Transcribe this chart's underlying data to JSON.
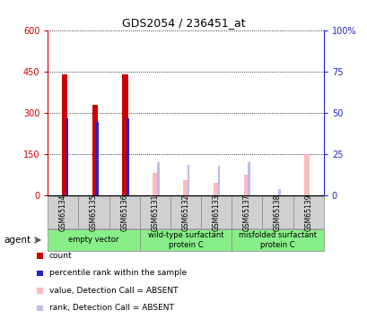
{
  "title": "GDS2054 / 236451_at",
  "samples": [
    "GSM65134",
    "GSM65135",
    "GSM65136",
    "GSM65131",
    "GSM65132",
    "GSM65133",
    "GSM65137",
    "GSM65138",
    "GSM65139"
  ],
  "count_values": [
    440,
    328,
    440,
    0,
    0,
    0,
    0,
    0,
    0
  ],
  "rank_values": [
    280,
    265,
    278,
    0,
    0,
    0,
    0,
    0,
    0
  ],
  "absent_value_values": [
    0,
    0,
    0,
    80,
    55,
    45,
    75,
    0,
    150
  ],
  "absent_rank_values": [
    0,
    0,
    0,
    120,
    110,
    105,
    120,
    22,
    0
  ],
  "count_color": "#cc0000",
  "rank_color": "#2222cc",
  "absent_value_color": "#ffbbbb",
  "absent_rank_color": "#bbbbee",
  "ylim_left": [
    0,
    600
  ],
  "ylim_right": [
    0,
    100
  ],
  "yticks_left": [
    0,
    150,
    300,
    450,
    600
  ],
  "yticks_right": [
    0,
    25,
    50,
    75,
    100
  ],
  "ytick_labels_left": [
    "0",
    "150",
    "300",
    "450",
    "600"
  ],
  "ytick_labels_right": [
    "0",
    "25",
    "50",
    "75",
    "100%"
  ],
  "groups": [
    {
      "label": "empty vector",
      "start": 0,
      "end": 3,
      "color": "#88ee88"
    },
    {
      "label": "wild-type surfactant\nprotein C",
      "start": 3,
      "end": 6,
      "color": "#88ee88"
    },
    {
      "label": "misfolded surfactant\nprotein C",
      "start": 6,
      "end": 9,
      "color": "#88ee88"
    }
  ],
  "agent_label": "agent",
  "legend_items": [
    {
      "label": "count",
      "color": "#cc0000"
    },
    {
      "label": "percentile rank within the sample",
      "color": "#2222cc"
    },
    {
      "label": "value, Detection Call = ABSENT",
      "color": "#ffbbbb"
    },
    {
      "label": "rank, Detection Call = ABSENT",
      "color": "#bbbbee"
    }
  ],
  "left_axis_color": "#cc0000",
  "right_axis_color": "#2222cc",
  "fig_width": 4.1,
  "fig_height": 3.75,
  "dpi": 100
}
